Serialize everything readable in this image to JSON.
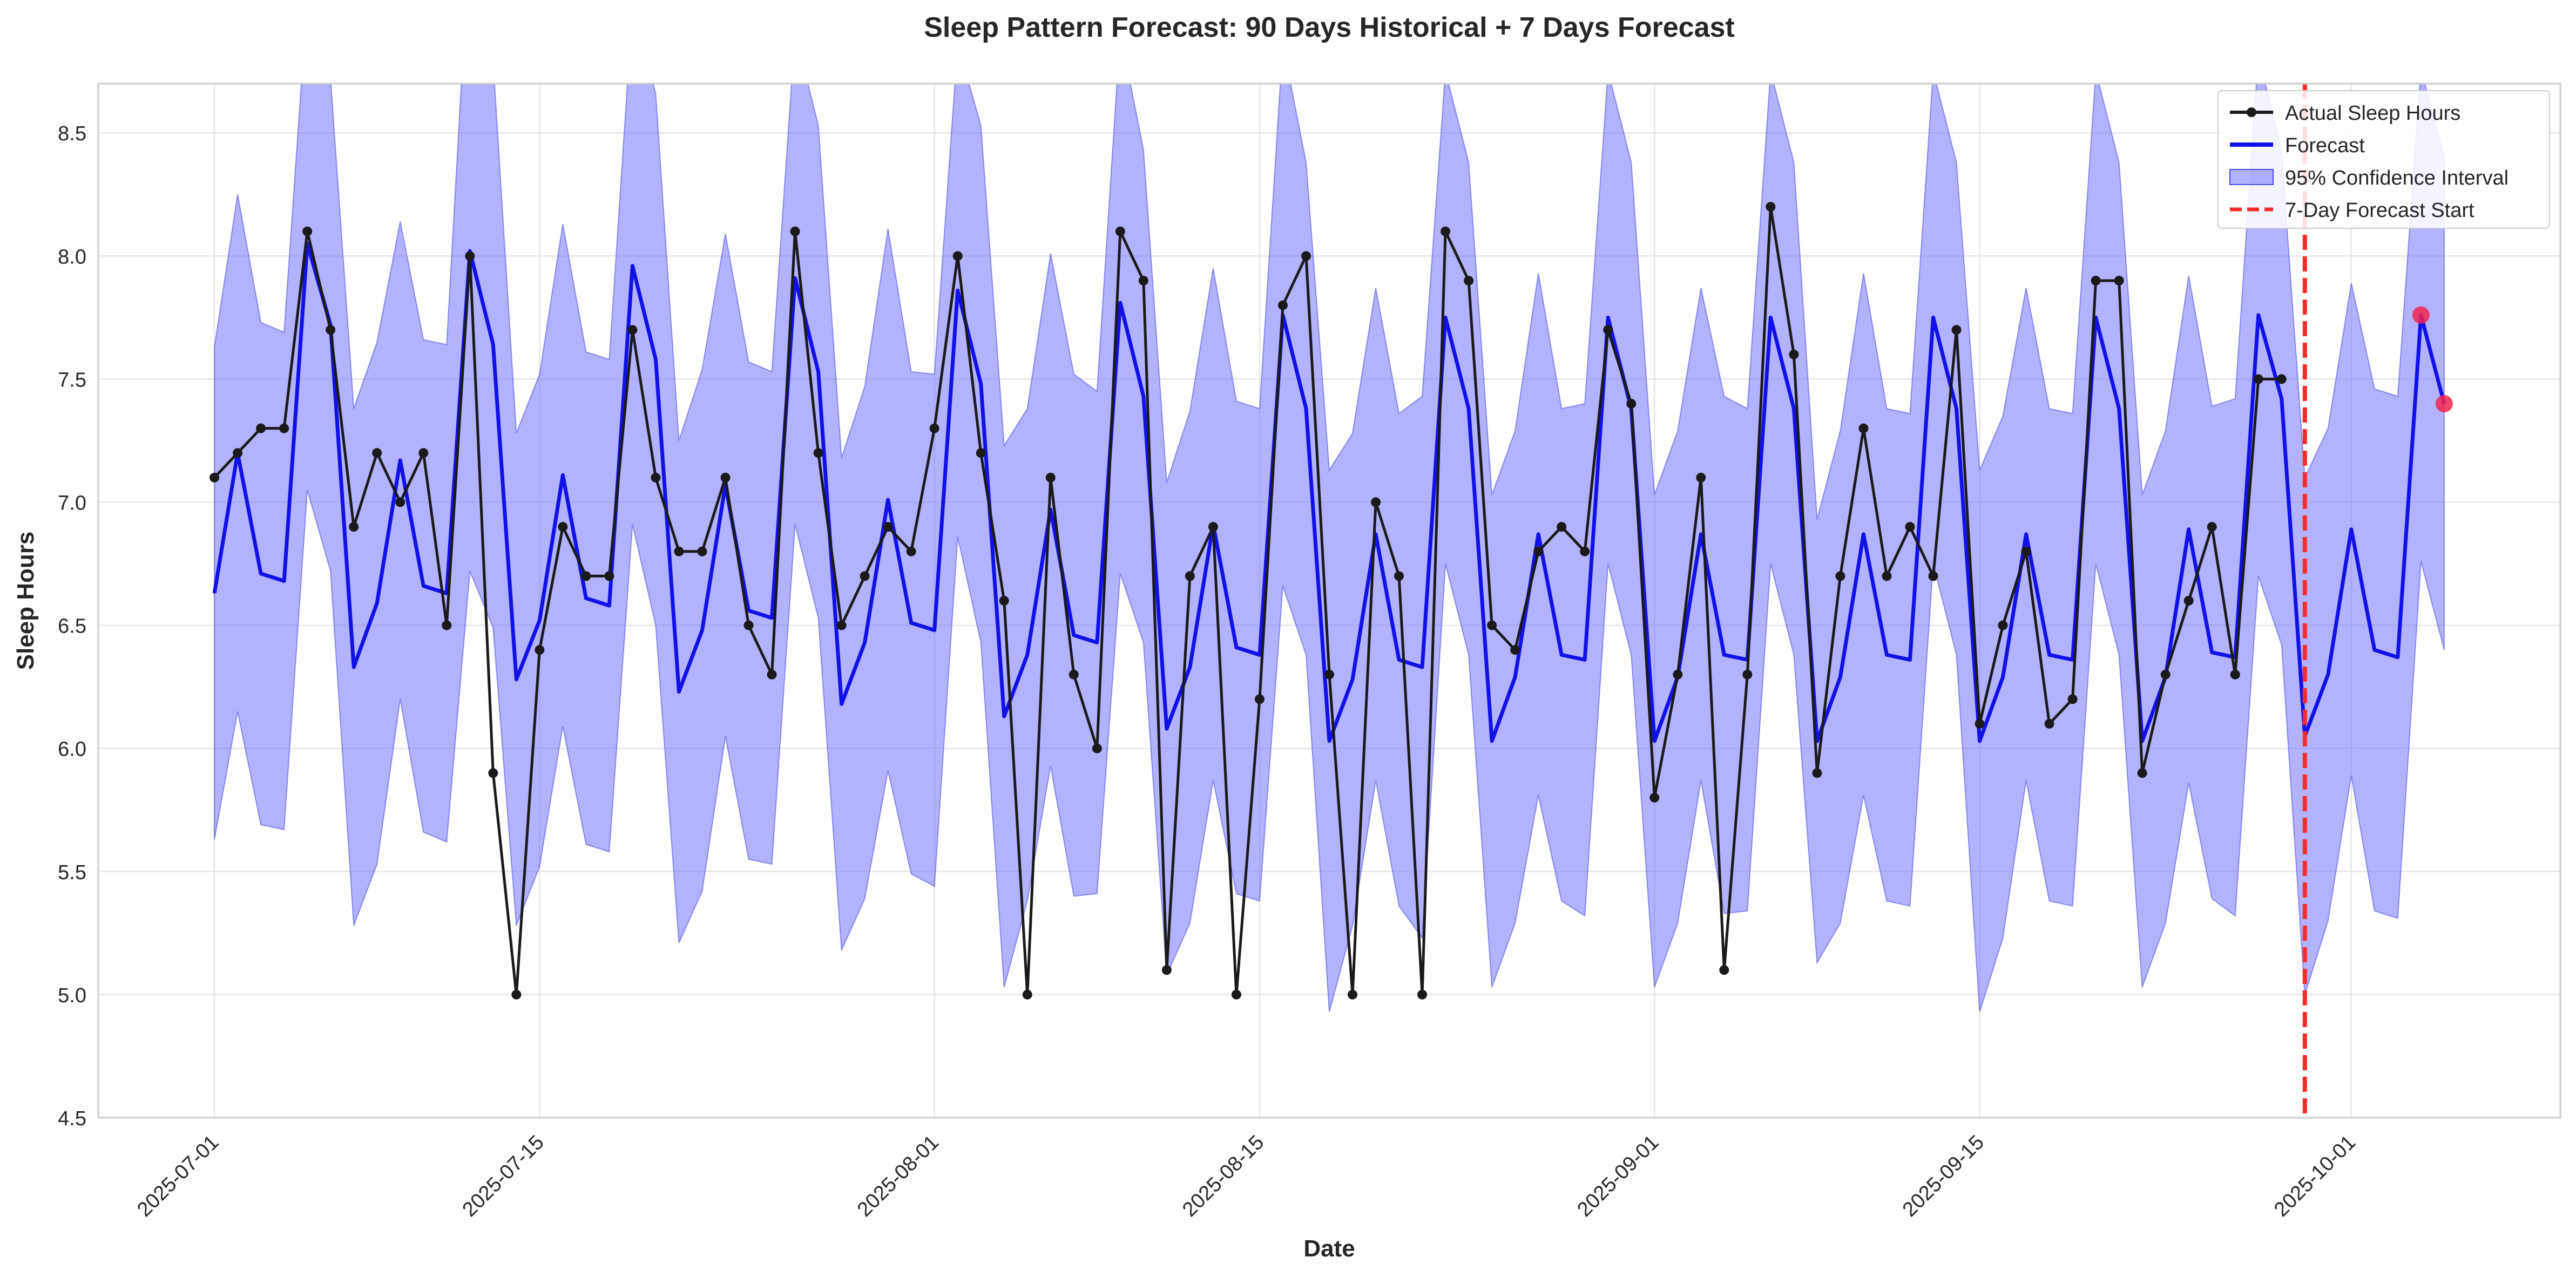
{
  "chart_data": {
    "type": "line",
    "title": "Sleep Pattern Forecast: 90 Days Historical + 7 Days Forecast",
    "xlabel": "Date",
    "ylabel": "Sleep Hours",
    "x_start_date": "2025-07-01",
    "xlim": [
      "2025-06-26",
      "2025-10-10"
    ],
    "ylim": [
      4.5,
      8.7
    ],
    "y_ticks": [
      "4.5",
      "5.0",
      "5.5",
      "6.0",
      "6.5",
      "7.0",
      "7.5",
      "8.0",
      "8.5"
    ],
    "x_ticks": [
      {
        "label": "2025-07-01",
        "date": "2025-07-01"
      },
      {
        "label": "2025-07-15",
        "date": "2025-07-15"
      },
      {
        "label": "2025-08-01",
        "date": "2025-08-01"
      },
      {
        "label": "2025-08-15",
        "date": "2025-08-15"
      },
      {
        "label": "2025-09-01",
        "date": "2025-09-01"
      },
      {
        "label": "2025-09-15",
        "date": "2025-09-15"
      },
      {
        "label": "2025-10-01",
        "date": "2025-10-01"
      }
    ],
    "grid": true,
    "legend_position": "top-right",
    "series": [
      {
        "name": "Actual Sleep Hours",
        "color": "#1a1a1a",
        "values": [
          7.1,
          7.2,
          7.3,
          7.3,
          8.1,
          7.7,
          6.9,
          7.2,
          7.0,
          7.2,
          6.5,
          8.0,
          5.9,
          5.0,
          6.4,
          6.9,
          6.7,
          6.7,
          7.7,
          7.1,
          6.8,
          6.8,
          7.1,
          6.5,
          6.3,
          8.1,
          7.2,
          6.5,
          6.7,
          6.9,
          6.8,
          7.3,
          8.0,
          7.2,
          6.6,
          5.0,
          7.1,
          6.3,
          6.0,
          8.1,
          7.9,
          5.1,
          6.7,
          6.9,
          5.0,
          6.2,
          7.8,
          8.0,
          6.3,
          5.0,
          7.0,
          6.7,
          5.0,
          8.1,
          7.9,
          6.5,
          6.4,
          6.8,
          6.9,
          6.8,
          7.7,
          7.4,
          5.8,
          6.3,
          7.1,
          5.1,
          6.3,
          8.2,
          7.6,
          5.9,
          6.7,
          7.3,
          6.7,
          6.9,
          6.7,
          7.7,
          6.1,
          6.5,
          6.8,
          6.1,
          6.2,
          7.9,
          7.9,
          5.9,
          6.3,
          6.6,
          6.9,
          6.3,
          7.5,
          7.5
        ]
      },
      {
        "name": "Forecast",
        "color": "#1010e8",
        "values": [
          6.63,
          7.2,
          6.71,
          6.68,
          8.05,
          7.72,
          6.33,
          6.59,
          7.17,
          6.66,
          6.63,
          8.02,
          7.64,
          6.28,
          6.52,
          7.11,
          6.61,
          6.58,
          7.96,
          7.58,
          6.23,
          6.48,
          7.07,
          6.56,
          6.53,
          7.91,
          7.53,
          6.18,
          6.43,
          7.01,
          6.51,
          6.48,
          7.86,
          7.48,
          6.13,
          6.38,
          6.97,
          6.46,
          6.43,
          7.81,
          7.43,
          6.08,
          6.33,
          6.91,
          6.41,
          6.38,
          7.76,
          7.38,
          6.03,
          6.28,
          6.87,
          6.36,
          6.33,
          7.75,
          7.38,
          6.03,
          6.29,
          6.87,
          6.38,
          6.36,
          7.75,
          7.38,
          6.03,
          6.29,
          6.87,
          6.38,
          6.36,
          7.75,
          7.38,
          6.03,
          6.29,
          6.87,
          6.38,
          6.36,
          7.75,
          7.38,
          6.03,
          6.29,
          6.87,
          6.38,
          6.36,
          7.75,
          7.38,
          6.03,
          6.29,
          6.89,
          6.39,
          6.37,
          7.76,
          7.42,
          6.05,
          6.3,
          6.89,
          6.4,
          6.37,
          7.76,
          7.4
        ]
      }
    ],
    "confidence_interval": {
      "name": "95% Confidence Interval",
      "color": "#6666ff",
      "half_width": [
        1.0,
        1.05,
        1.02,
        1.01,
        1.0,
        1.0,
        1.05,
        1.06,
        0.97,
        1.0,
        1.01,
        1.3,
        1.15,
        1.0,
        1.0,
        1.02,
        1.0,
        1.0,
        1.05,
        1.08,
        1.02,
        1.06,
        1.02,
        1.01,
        1.0,
        1.0,
        1.0,
        1.0,
        1.04,
        1.1,
        1.02,
        1.04,
        1.0,
        1.05,
        1.1,
        1.0,
        1.04,
        1.06,
        1.02,
        1.1,
        1.0,
        1.0,
        1.04,
        1.04,
        1.0,
        1.0,
        1.1,
        1.0,
        1.1,
        1.0,
        1.0,
        1.0,
        1.1,
        1.0,
        1.0,
        1.0,
        1.0,
        1.06,
        1.0,
        1.04,
        1.0,
        1.0,
        1.0,
        1.0,
        1.0,
        1.05,
        1.02,
        1.0,
        1.0,
        0.9,
        1.0,
        1.06,
        1.0,
        1.0,
        1.0,
        1.0,
        1.1,
        1.06,
        1.0,
        1.0,
        1.0,
        1.0,
        1.0,
        1.0,
        1.0,
        1.03,
        1.0,
        1.05,
        1.06,
        1.0,
        1.05,
        1.0,
        1.0,
        1.06,
        1.06,
        1.0,
        1.0
      ]
    },
    "forecast_start": {
      "name": "7-Day Forecast Start",
      "date": "2025-09-29",
      "color": "#ff2a2a"
    },
    "forecast_markers": {
      "color": "#f0244f",
      "days": [
        95,
        96
      ]
    }
  }
}
